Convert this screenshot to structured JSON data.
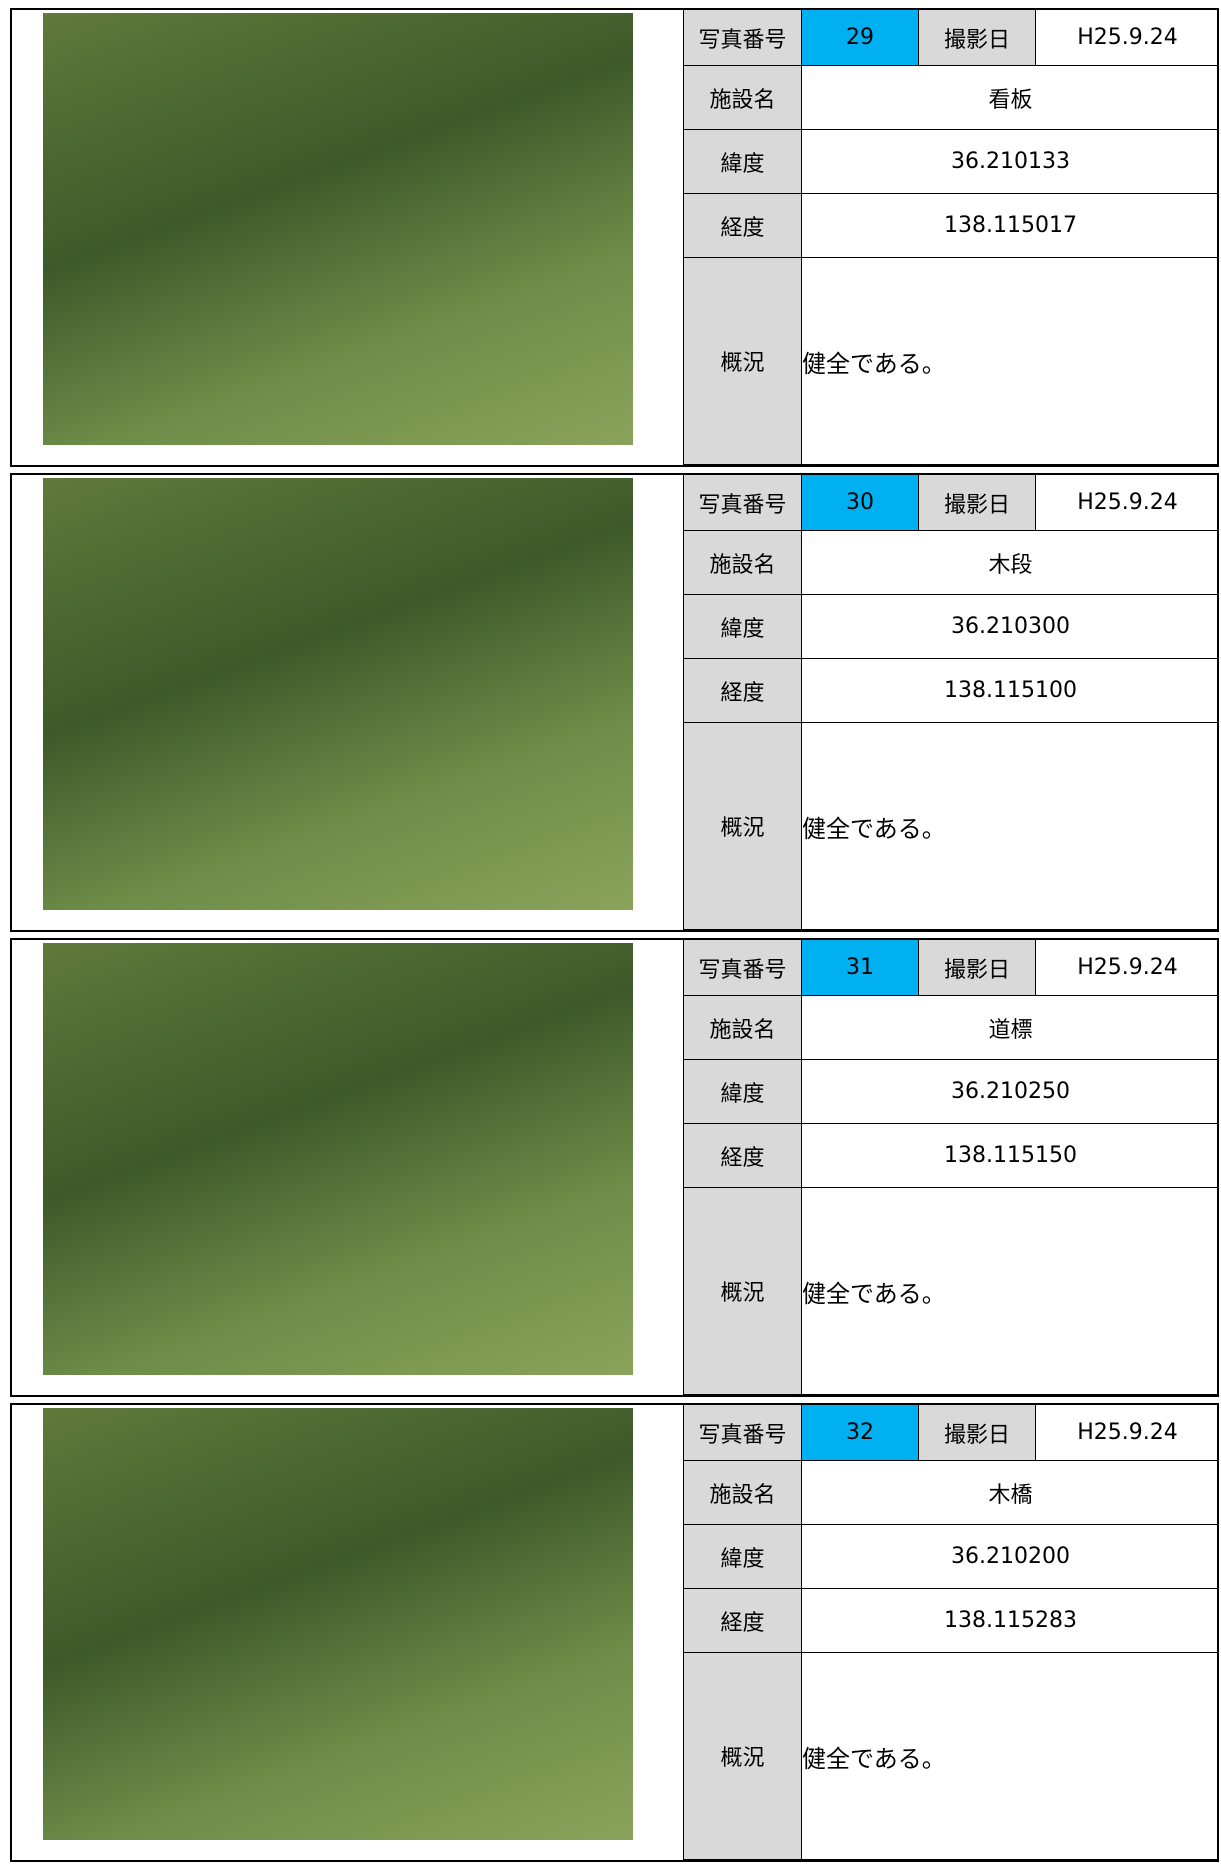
{
  "labels": {
    "photo_no": "写真番号",
    "date": "撮影日",
    "facility": "施設名",
    "lat": "緯度",
    "lon": "経度",
    "status": "概況"
  },
  "records": [
    {
      "photo_no": 29,
      "date": "H25.9.24",
      "facility": "看板",
      "lat": "36.210133",
      "lon": "138.115017",
      "status": "健全である。"
    },
    {
      "photo_no": 30,
      "date": "H25.9.24",
      "facility": "木段",
      "lat": "36.210300",
      "lon": "138.115100",
      "status": "健全である。"
    },
    {
      "photo_no": 31,
      "date": "H25.9.24",
      "facility": "道標",
      "lat": "36.210250",
      "lon": "138.115150",
      "status": "健全である。"
    },
    {
      "photo_no": 32,
      "date": "H25.9.24",
      "facility": "木橋",
      "lat": "36.210200",
      "lon": "138.115283",
      "status": "健全である。"
    }
  ]
}
